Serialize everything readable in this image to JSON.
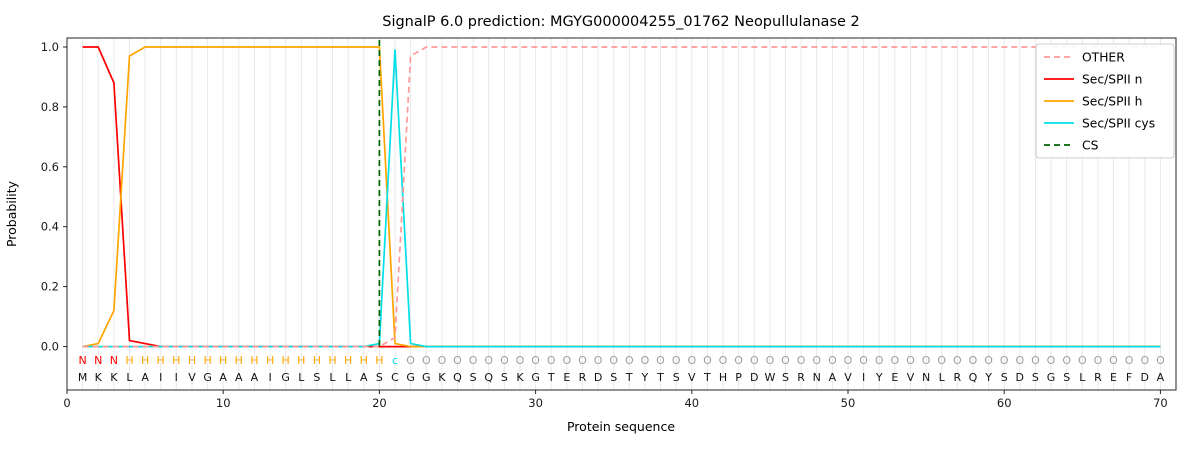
{
  "chart_data": {
    "type": "line",
    "title": "SignalP 6.0 prediction: MGYG000004255_01762 Neopullulanase 2",
    "xlabel": "Protein sequence",
    "ylabel": "Probability",
    "xlim": [
      0,
      71
    ],
    "ylim": [
      -0.145,
      1.03
    ],
    "xticks": [
      0,
      10,
      20,
      30,
      40,
      50,
      60,
      70
    ],
    "yticks": [
      0.0,
      0.2,
      0.4,
      0.6,
      0.8,
      1.0
    ],
    "grid": {
      "per_residue_vertical": true,
      "color": "#e8e8e8"
    },
    "axis_color": "#262626",
    "sequence": "MKKLAIIVGAAAIGLSLLASCGGKQSQSKGTERDSTYTSVTHPDWSRNAVIYEVNLRQYSDSGSLREFDA",
    "sequence_color": "#111111",
    "regions": [
      {
        "label": "N",
        "name": "n-region",
        "start": 1,
        "end": 3
      },
      {
        "label": "H",
        "name": "h-region",
        "start": 4,
        "end": 20
      },
      {
        "label": "c",
        "name": "cys-site",
        "start": 21,
        "end": 21
      },
      {
        "label": "O",
        "name": "other-region",
        "start": 22,
        "end": 70
      }
    ],
    "region_colors": {
      "N": "#ff0000",
      "H": "#ffa500",
      "c": "#00dfe6",
      "O": "#9e9e9e"
    },
    "cs": {
      "label": "CS",
      "position": 20,
      "color": "#006400"
    },
    "series": [
      {
        "name": "Sec/SPII n",
        "color": "#ff0000",
        "dashed": false,
        "values": [
          1.0,
          1.0,
          0.88,
          0.02,
          0.01,
          0.0,
          0.0,
          0.0,
          0.0,
          0.0,
          0.0,
          0.0,
          0.0,
          0.0,
          0.0,
          0.0,
          0.0,
          0.0,
          0.0,
          0.0,
          0.0,
          0.0,
          0.0,
          0.0,
          0.0,
          0.0,
          0.0,
          0.0,
          0.0,
          0.0,
          0.0,
          0.0,
          0.0,
          0.0,
          0.0,
          0.0,
          0.0,
          0.0,
          0.0,
          0.0,
          0.0,
          0.0,
          0.0,
          0.0,
          0.0,
          0.0,
          0.0,
          0.0,
          0.0,
          0.0,
          0.0,
          0.0,
          0.0,
          0.0,
          0.0,
          0.0,
          0.0,
          0.0,
          0.0,
          0.0,
          0.0,
          0.0,
          0.0,
          0.0,
          0.0,
          0.0,
          0.0,
          0.0,
          0.0,
          0.0
        ]
      },
      {
        "name": "Sec/SPII h",
        "color": "#ffa500",
        "dashed": false,
        "values": [
          0.0,
          0.01,
          0.12,
          0.97,
          1.0,
          1.0,
          1.0,
          1.0,
          1.0,
          1.0,
          1.0,
          1.0,
          1.0,
          1.0,
          1.0,
          1.0,
          1.0,
          1.0,
          1.0,
          1.0,
          0.01,
          0.0,
          0.0,
          0.0,
          0.0,
          0.0,
          0.0,
          0.0,
          0.0,
          0.0,
          0.0,
          0.0,
          0.0,
          0.0,
          0.0,
          0.0,
          0.0,
          0.0,
          0.0,
          0.0,
          0.0,
          0.0,
          0.0,
          0.0,
          0.0,
          0.0,
          0.0,
          0.0,
          0.0,
          0.0,
          0.0,
          0.0,
          0.0,
          0.0,
          0.0,
          0.0,
          0.0,
          0.0,
          0.0,
          0.0,
          0.0,
          0.0,
          0.0,
          0.0,
          0.0,
          0.0,
          0.0,
          0.0,
          0.0,
          0.0
        ]
      },
      {
        "name": "Sec/SPII cys",
        "color": "#00dfe6",
        "dashed": false,
        "values": [
          0.0,
          0.0,
          0.0,
          0.0,
          0.0,
          0.0,
          0.0,
          0.0,
          0.0,
          0.0,
          0.0,
          0.0,
          0.0,
          0.0,
          0.0,
          0.0,
          0.0,
          0.0,
          0.0,
          0.01,
          0.99,
          0.01,
          0.0,
          0.0,
          0.0,
          0.0,
          0.0,
          0.0,
          0.0,
          0.0,
          0.0,
          0.0,
          0.0,
          0.0,
          0.0,
          0.0,
          0.0,
          0.0,
          0.0,
          0.0,
          0.0,
          0.0,
          0.0,
          0.0,
          0.0,
          0.0,
          0.0,
          0.0,
          0.0,
          0.0,
          0.0,
          0.0,
          0.0,
          0.0,
          0.0,
          0.0,
          0.0,
          0.0,
          0.0,
          0.0,
          0.0,
          0.0,
          0.0,
          0.0,
          0.0,
          0.0,
          0.0,
          0.0,
          0.0,
          0.0
        ]
      },
      {
        "name": "OTHER",
        "color": "#ff9999",
        "dashed": true,
        "values": [
          0.0,
          0.0,
          0.0,
          0.0,
          0.0,
          0.0,
          0.0,
          0.0,
          0.0,
          0.0,
          0.0,
          0.0,
          0.0,
          0.0,
          0.0,
          0.0,
          0.0,
          0.0,
          0.0,
          0.0,
          0.03,
          0.97,
          1.0,
          1.0,
          1.0,
          1.0,
          1.0,
          1.0,
          1.0,
          1.0,
          1.0,
          1.0,
          1.0,
          1.0,
          1.0,
          1.0,
          1.0,
          1.0,
          1.0,
          1.0,
          1.0,
          1.0,
          1.0,
          1.0,
          1.0,
          1.0,
          1.0,
          1.0,
          1.0,
          1.0,
          1.0,
          1.0,
          1.0,
          1.0,
          1.0,
          1.0,
          1.0,
          1.0,
          1.0,
          1.0,
          1.0,
          1.0,
          1.0,
          1.0,
          1.0,
          1.0,
          1.0,
          1.0,
          1.0,
          1.0
        ]
      }
    ],
    "legend": {
      "entries": [
        {
          "label": "OTHER",
          "color": "#ff9999",
          "dashed": true
        },
        {
          "label": "Sec/SPII n",
          "color": "#ff0000",
          "dashed": false
        },
        {
          "label": "Sec/SPII h",
          "color": "#ffa500",
          "dashed": false
        },
        {
          "label": "Sec/SPII cys",
          "color": "#00dfe6",
          "dashed": false
        },
        {
          "label": "CS",
          "color": "#006400",
          "dashed": true
        }
      ]
    }
  }
}
